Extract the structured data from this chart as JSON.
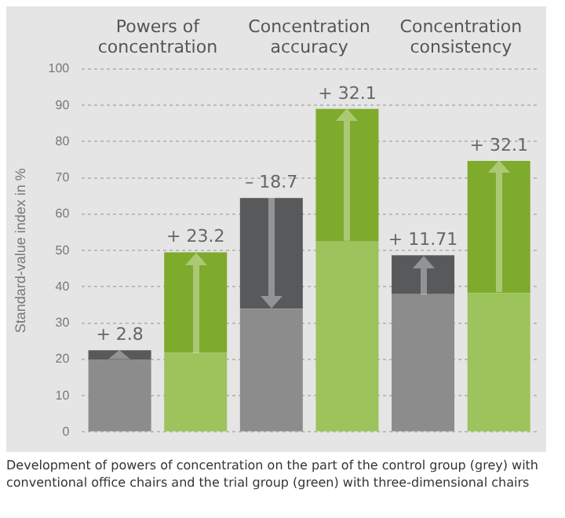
{
  "chart_data": {
    "type": "bar",
    "stacked": true,
    "categories": [
      "Powers of concentration",
      null,
      "Concentration accuracy",
      null,
      "Concentration consistency",
      null
    ],
    "ylabel": "Standard-value index in %",
    "ylim": [
      0,
      100
    ],
    "yticks": [
      0,
      10,
      20,
      30,
      40,
      50,
      60,
      70,
      80,
      90,
      100
    ],
    "grid": "y",
    "series": [
      {
        "colors": [
          "#8c8c8c",
          "#9cc35c",
          "#8c8c8c",
          "#9cc35c",
          "#8c8c8c",
          "#9cc35c"
        ],
        "values": [
          20,
          21.8,
          34,
          52.5,
          38,
          38.3
        ]
      },
      {
        "colors": [
          "#58595b",
          "#7eab2b",
          "#58595b",
          "#7eab2b",
          "#58595b",
          "#7eab2b"
        ],
        "values": [
          2.5,
          27.7,
          30.5,
          36.5,
          10.7,
          36.4
        ]
      }
    ],
    "annotations": [
      {
        "text": "+ 2.8",
        "y": 22.5
      },
      {
        "text": "+ 23.2",
        "y": 49.5
      },
      {
        "text": "– 18.7",
        "y": 64.5
      },
      {
        "text": "+ 32.1",
        "y": 89
      },
      {
        "text": "+ 11.71",
        "y": 48.7
      },
      {
        "text": "+ 32.1",
        "y": 74.7
      },
      "Development of powers of concentration on the part of the control group (grey) with conventional office chairs and the trial group (green) with three-dimensional chairs"
    ]
  }
}
